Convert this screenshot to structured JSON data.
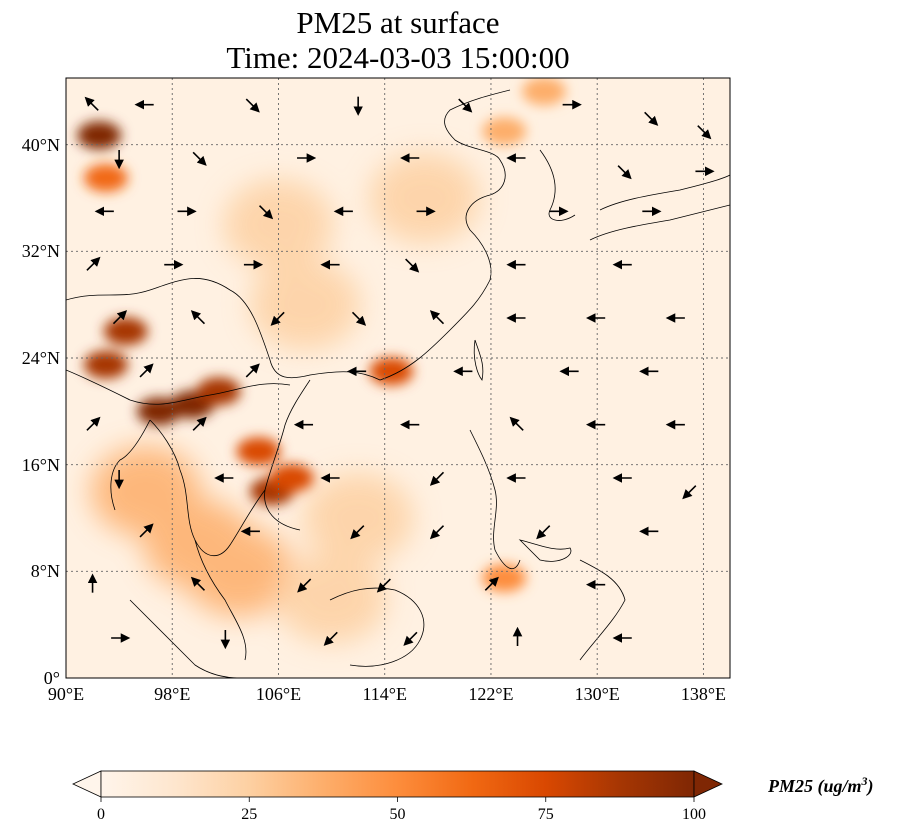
{
  "title": {
    "line1": "PM25 at surface",
    "line2": "Time: 2024-03-03 15:00:00"
  },
  "map": {
    "extent": {
      "lon_min": 90,
      "lon_max": 140,
      "lat_min": 0,
      "lat_max": 45
    },
    "lon_ticks": [
      {
        "value": 90,
        "label": "90°E"
      },
      {
        "value": 98,
        "label": "98°E"
      },
      {
        "value": 106,
        "label": "106°E"
      },
      {
        "value": 114,
        "label": "114°E"
      },
      {
        "value": 122,
        "label": "122°E"
      },
      {
        "value": 130,
        "label": "130°E"
      },
      {
        "value": 138,
        "label": "138°E"
      }
    ],
    "lat_ticks": [
      {
        "value": 0,
        "label": "0°"
      },
      {
        "value": 8,
        "label": "8°N"
      },
      {
        "value": 16,
        "label": "16°N"
      },
      {
        "value": 24,
        "label": "24°N"
      },
      {
        "value": 32,
        "label": "32°N"
      },
      {
        "value": 40,
        "label": "40°N"
      }
    ],
    "gridlines": true,
    "pm25_hotspots": [
      {
        "lon": 92.5,
        "lat": 40.7,
        "value": 95
      },
      {
        "lon": 93.0,
        "lat": 37.5,
        "value": 60
      },
      {
        "lon": 94.5,
        "lat": 26.0,
        "value": 85
      },
      {
        "lon": 93.0,
        "lat": 23.5,
        "value": 90
      },
      {
        "lon": 97.0,
        "lat": 20.0,
        "value": 95
      },
      {
        "lon": 99.5,
        "lat": 20.5,
        "value": 100
      },
      {
        "lon": 101.5,
        "lat": 21.5,
        "value": 90
      },
      {
        "lon": 104.5,
        "lat": 17.0,
        "value": 80
      },
      {
        "lon": 105.5,
        "lat": 14.0,
        "value": 85
      },
      {
        "lon": 107.0,
        "lat": 15.0,
        "value": 80
      },
      {
        "lon": 114.5,
        "lat": 23.0,
        "value": 70
      },
      {
        "lon": 123.0,
        "lat": 7.5,
        "value": 50
      },
      {
        "lon": 126.0,
        "lat": 44.0,
        "value": 40
      },
      {
        "lon": 123.0,
        "lat": 41.0,
        "value": 40
      }
    ],
    "pm25_moderate": [
      {
        "lon": 96.0,
        "lat": 14.0,
        "value": 35
      },
      {
        "lon": 100.0,
        "lat": 10.0,
        "value": 40
      },
      {
        "lon": 103.0,
        "lat": 8.0,
        "value": 35
      },
      {
        "lon": 108.0,
        "lat": 28.0,
        "value": 30
      },
      {
        "lon": 106.0,
        "lat": 34.0,
        "value": 25
      },
      {
        "lon": 110.0,
        "lat": 6.0,
        "value": 30
      },
      {
        "lon": 112.0,
        "lat": 12.0,
        "value": 28
      },
      {
        "lon": 117.0,
        "lat": 36.0,
        "value": 25
      }
    ],
    "wind_vectors": [
      {
        "lon": 92,
        "lat": 43,
        "u": -1,
        "v": 1
      },
      {
        "lon": 96,
        "lat": 43,
        "u": -1,
        "v": 0
      },
      {
        "lon": 104,
        "lat": 43,
        "u": 1,
        "v": -1
      },
      {
        "lon": 112,
        "lat": 43,
        "u": 0,
        "v": -1
      },
      {
        "lon": 120,
        "lat": 43,
        "u": 1,
        "v": -1
      },
      {
        "lon": 128,
        "lat": 43,
        "u": 1,
        "v": 0
      },
      {
        "lon": 134,
        "lat": 42,
        "u": 1,
        "v": -1
      },
      {
        "lon": 138,
        "lat": 41,
        "u": 1,
        "v": -1
      },
      {
        "lon": 94,
        "lat": 39,
        "u": 0,
        "v": -1
      },
      {
        "lon": 100,
        "lat": 39,
        "u": 1,
        "v": -1
      },
      {
        "lon": 108,
        "lat": 39,
        "u": 1,
        "v": 0
      },
      {
        "lon": 116,
        "lat": 39,
        "u": -1,
        "v": 0
      },
      {
        "lon": 124,
        "lat": 39,
        "u": -1,
        "v": 0
      },
      {
        "lon": 132,
        "lat": 38,
        "u": 1,
        "v": -1
      },
      {
        "lon": 138,
        "lat": 38,
        "u": 1,
        "v": 0
      },
      {
        "lon": 93,
        "lat": 35,
        "u": -1,
        "v": 0
      },
      {
        "lon": 99,
        "lat": 35,
        "u": 1,
        "v": 0
      },
      {
        "lon": 105,
        "lat": 35,
        "u": 1,
        "v": -1
      },
      {
        "lon": 111,
        "lat": 35,
        "u": -1,
        "v": 0
      },
      {
        "lon": 117,
        "lat": 35,
        "u": 1,
        "v": 0
      },
      {
        "lon": 127,
        "lat": 35,
        "u": 1,
        "v": 0
      },
      {
        "lon": 134,
        "lat": 35,
        "u": 1,
        "v": 0
      },
      {
        "lon": 92,
        "lat": 31,
        "u": 1,
        "v": 1
      },
      {
        "lon": 98,
        "lat": 31,
        "u": 1,
        "v": 0
      },
      {
        "lon": 104,
        "lat": 31,
        "u": 1,
        "v": 0
      },
      {
        "lon": 110,
        "lat": 31,
        "u": -1,
        "v": 0
      },
      {
        "lon": 116,
        "lat": 31,
        "u": 1,
        "v": -1
      },
      {
        "lon": 124,
        "lat": 31,
        "u": -1,
        "v": 0
      },
      {
        "lon": 132,
        "lat": 31,
        "u": -1,
        "v": 0
      },
      {
        "lon": 94,
        "lat": 27,
        "u": 1,
        "v": 1
      },
      {
        "lon": 100,
        "lat": 27,
        "u": -1,
        "v": 1
      },
      {
        "lon": 106,
        "lat": 27,
        "u": -1,
        "v": -1
      },
      {
        "lon": 112,
        "lat": 27,
        "u": 1,
        "v": -1
      },
      {
        "lon": 118,
        "lat": 27,
        "u": -1,
        "v": 1
      },
      {
        "lon": 124,
        "lat": 27,
        "u": -1,
        "v": 0
      },
      {
        "lon": 130,
        "lat": 27,
        "u": -1,
        "v": 0
      },
      {
        "lon": 136,
        "lat": 27,
        "u": -1,
        "v": 0
      },
      {
        "lon": 96,
        "lat": 23,
        "u": 1,
        "v": 1
      },
      {
        "lon": 104,
        "lat": 23,
        "u": 1,
        "v": 1
      },
      {
        "lon": 112,
        "lat": 23,
        "u": -1,
        "v": 0
      },
      {
        "lon": 120,
        "lat": 23,
        "u": -1,
        "v": 0
      },
      {
        "lon": 128,
        "lat": 23,
        "u": -1,
        "v": 0
      },
      {
        "lon": 134,
        "lat": 23,
        "u": -1,
        "v": 0
      },
      {
        "lon": 92,
        "lat": 19,
        "u": 1,
        "v": 1
      },
      {
        "lon": 100,
        "lat": 19,
        "u": 1,
        "v": 1
      },
      {
        "lon": 108,
        "lat": 19,
        "u": -1,
        "v": 0
      },
      {
        "lon": 116,
        "lat": 19,
        "u": -1,
        "v": 0
      },
      {
        "lon": 124,
        "lat": 19,
        "u": -1,
        "v": 1
      },
      {
        "lon": 130,
        "lat": 19,
        "u": -1,
        "v": 0
      },
      {
        "lon": 136,
        "lat": 19,
        "u": -1,
        "v": 0
      },
      {
        "lon": 94,
        "lat": 15,
        "u": 0,
        "v": -1
      },
      {
        "lon": 102,
        "lat": 15,
        "u": -1,
        "v": 0
      },
      {
        "lon": 110,
        "lat": 15,
        "u": -1,
        "v": 0
      },
      {
        "lon": 118,
        "lat": 15,
        "u": -1,
        "v": -1
      },
      {
        "lon": 124,
        "lat": 15,
        "u": -1,
        "v": 0
      },
      {
        "lon": 132,
        "lat": 15,
        "u": -1,
        "v": 0
      },
      {
        "lon": 137,
        "lat": 14,
        "u": -1,
        "v": -1
      },
      {
        "lon": 96,
        "lat": 11,
        "u": 1,
        "v": 1
      },
      {
        "lon": 104,
        "lat": 11,
        "u": -1,
        "v": 0
      },
      {
        "lon": 112,
        "lat": 11,
        "u": -1,
        "v": -1
      },
      {
        "lon": 118,
        "lat": 11,
        "u": -1,
        "v": -1
      },
      {
        "lon": 126,
        "lat": 11,
        "u": -1,
        "v": -1
      },
      {
        "lon": 134,
        "lat": 11,
        "u": -1,
        "v": 0
      },
      {
        "lon": 92,
        "lat": 7,
        "u": 0,
        "v": 1
      },
      {
        "lon": 100,
        "lat": 7,
        "u": -1,
        "v": 1
      },
      {
        "lon": 108,
        "lat": 7,
        "u": -1,
        "v": -1
      },
      {
        "lon": 114,
        "lat": 7,
        "u": -1,
        "v": -1
      },
      {
        "lon": 122,
        "lat": 7,
        "u": 1,
        "v": 1
      },
      {
        "lon": 130,
        "lat": 7,
        "u": -1,
        "v": 0
      },
      {
        "lon": 94,
        "lat": 3,
        "u": 1,
        "v": 0
      },
      {
        "lon": 102,
        "lat": 3,
        "u": 0,
        "v": -1
      },
      {
        "lon": 110,
        "lat": 3,
        "u": -1,
        "v": -1
      },
      {
        "lon": 116,
        "lat": 3,
        "u": -1,
        "v": -1
      },
      {
        "lon": 124,
        "lat": 3,
        "u": 0,
        "v": 1
      },
      {
        "lon": 132,
        "lat": 3,
        "u": -1,
        "v": 0
      }
    ]
  },
  "colorbar": {
    "title": "PM25 (ug/m",
    "title_sup": "3",
    "title_end": ")",
    "vmin": 0,
    "vmax": 100,
    "extend": "both",
    "ticks": [
      {
        "value": 0,
        "label": "0"
      },
      {
        "value": 25,
        "label": "25"
      },
      {
        "value": 50,
        "label": "50"
      },
      {
        "value": 75,
        "label": "75"
      },
      {
        "value": 100,
        "label": "100"
      }
    ],
    "colors": [
      "#fff5eb",
      "#fee6ce",
      "#fdd0a2",
      "#fdae6b",
      "#fd8d3c",
      "#f16913",
      "#d94801",
      "#a63603",
      "#7f2704"
    ]
  }
}
